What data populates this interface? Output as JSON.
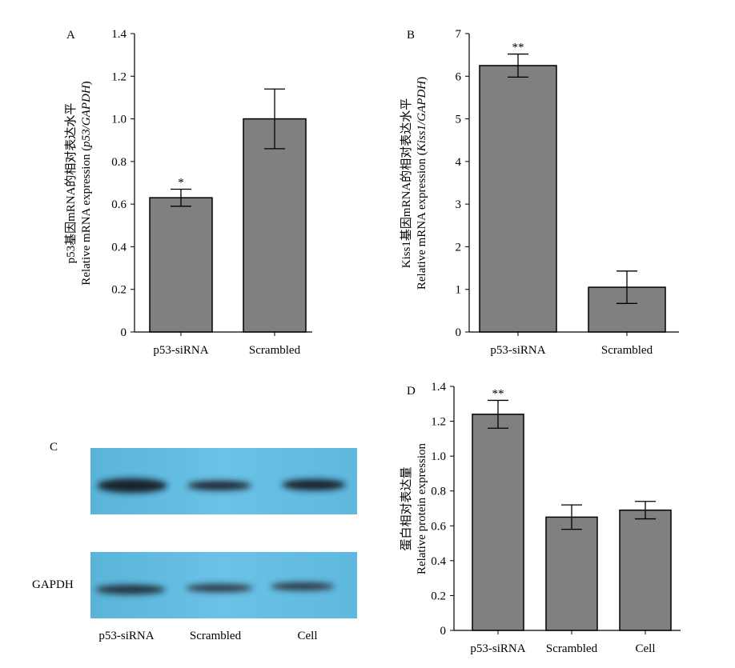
{
  "colors": {
    "bar_fill": "#808080",
    "bar_stroke": "#000000",
    "blot_bg": "#62bde2",
    "band": "#1a2430"
  },
  "chart_data": [
    {
      "panel": "A",
      "type": "bar",
      "categories": [
        "p53-siRNA",
        "Scrambled"
      ],
      "values": [
        0.63,
        1.0
      ],
      "errors": [
        0.04,
        0.14
      ],
      "significance": [
        "*",
        ""
      ],
      "ylim": [
        0,
        1.4
      ],
      "yticks": [
        "0",
        "0.2",
        "0.4",
        "0.6",
        "0.8",
        "1.0",
        "1.2",
        "1.4"
      ],
      "ylabel_cn": "p53基因mRNA的相对表达水平",
      "ylabel_en": "Relative mRNA expression (p53/GAPDH)"
    },
    {
      "panel": "B",
      "type": "bar",
      "categories": [
        "p53-siRNA",
        "Scrambled"
      ],
      "values": [
        6.25,
        1.05
      ],
      "errors": [
        0.27,
        0.38
      ],
      "significance": [
        "**",
        ""
      ],
      "ylim": [
        0,
        7
      ],
      "yticks": [
        "0",
        "1",
        "2",
        "3",
        "4",
        "5",
        "6",
        "7"
      ],
      "ylabel_cn": "Kiss1基因mRNA的相对表达水平",
      "ylabel_en": "Relative mRNA expression (Kiss1/GAPDH)"
    },
    {
      "panel": "D",
      "type": "bar",
      "categories": [
        "p53-siRNA",
        "Scrambled",
        "Cell"
      ],
      "values": [
        1.24,
        0.65,
        0.69
      ],
      "errors": [
        0.08,
        0.07,
        0.05
      ],
      "significance": [
        "**",
        "",
        ""
      ],
      "ylim": [
        0,
        1.4
      ],
      "yticks": [
        "0",
        "0.2",
        "0.4",
        "0.6",
        "0.8",
        "1.0",
        "1.2",
        "1.4"
      ],
      "ylabel_cn": "蛋白相对表达量",
      "ylabel_en": "Relative protein expression"
    }
  ],
  "blot": {
    "panel": "C",
    "row_label": "GAPDH",
    "lanes": [
      "p53-siRNA",
      "Scrambled",
      "Cell"
    ]
  }
}
